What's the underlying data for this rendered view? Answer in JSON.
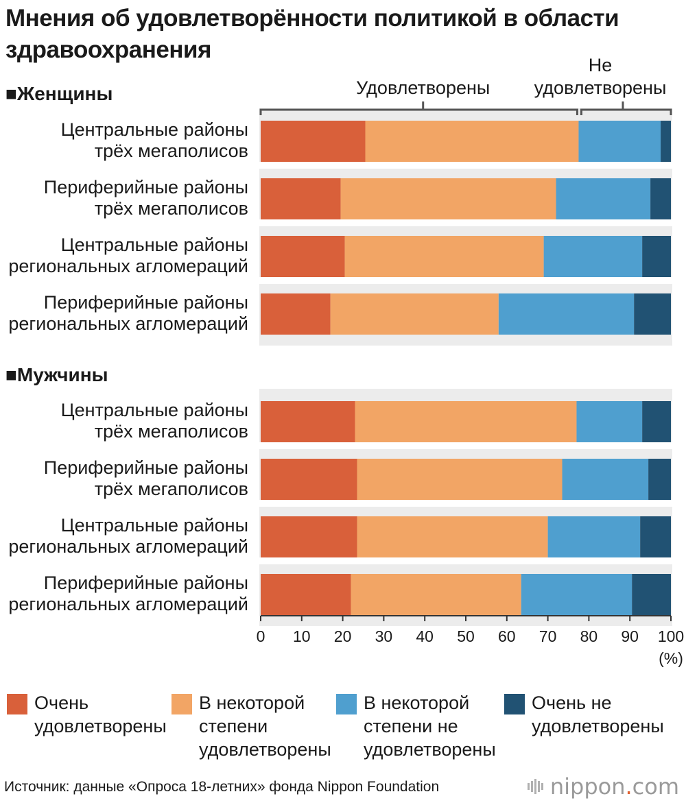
{
  "title": "Мнения об удовлетворённости политикой в области здравоохранения",
  "bracket_satisfied": "Удовлетворены",
  "bracket_unsatisfied_line1": "Не",
  "bracket_unsatisfied_line2": "удовлетворены",
  "unit_label": "(%)",
  "source": "Источник: данные «Опроса 18-летних» фонда Nippon Foundation",
  "logo": {
    "name": "nippon",
    "dot": ".",
    "suffix": "com"
  },
  "colors": {
    "very_satisfied": "#d9603a",
    "somewhat_satisfied": "#f2a565",
    "somewhat_unsatisfied": "#4f9fcf",
    "very_unsatisfied": "#215273",
    "row_band": "#ececec"
  },
  "legend": [
    {
      "key": "very_satisfied",
      "lines": [
        "Очень",
        "удовлетворены"
      ]
    },
    {
      "key": "somewhat_satisfied",
      "lines": [
        "В некоторой",
        "степени",
        "удовлетворены"
      ]
    },
    {
      "key": "somewhat_unsatisfied",
      "lines": [
        "В некоторой",
        "степени не",
        "удовлетворены"
      ]
    },
    {
      "key": "very_unsatisfied",
      "lines": [
        "Очень не",
        "удовлетворены"
      ]
    }
  ],
  "chart_data": {
    "type": "bar",
    "orientation": "horizontal-stacked",
    "xlim": [
      0,
      100
    ],
    "xticks": [
      0,
      10,
      20,
      30,
      40,
      50,
      60,
      70,
      80,
      90,
      100
    ],
    "series_names": [
      "Очень удовлетворены",
      "В некоторой степени удовлетворены",
      "В некоторой степени не удовлетворены",
      "Очень не удовлетворены"
    ],
    "groups": [
      {
        "label": "■Женщины",
        "rows": [
          {
            "label": [
              "Центральные районы",
              "трёх мегаполисов"
            ],
            "values": [
              25.5,
              52.0,
              20.0,
              2.5
            ]
          },
          {
            "label": [
              "Периферийные районы",
              "трёх мегаполисов"
            ],
            "values": [
              19.5,
              52.5,
              23.0,
              5.0
            ]
          },
          {
            "label": [
              "Центральные районы",
              "региональных агломераций"
            ],
            "values": [
              20.5,
              48.5,
              24.0,
              7.0
            ]
          },
          {
            "label": [
              "Периферийные районы",
              "региональных агломераций"
            ],
            "values": [
              17.0,
              41.0,
              33.0,
              9.0
            ]
          }
        ]
      },
      {
        "label": "■Мужчины",
        "rows": [
          {
            "label": [
              "Центральные районы",
              "трёх мегаполисов"
            ],
            "values": [
              23.0,
              54.0,
              16.0,
              7.0
            ]
          },
          {
            "label": [
              "Периферийные районы",
              "трёх мегаполисов"
            ],
            "values": [
              23.5,
              50.0,
              21.0,
              5.5
            ]
          },
          {
            "label": [
              "Центральные районы",
              "региональных агломераций"
            ],
            "values": [
              23.5,
              46.5,
              22.5,
              7.5
            ]
          },
          {
            "label": [
              "Периферийные районы",
              "региональных агломераций"
            ],
            "values": [
              22.0,
              41.5,
              27.0,
              9.5
            ]
          }
        ]
      }
    ]
  }
}
